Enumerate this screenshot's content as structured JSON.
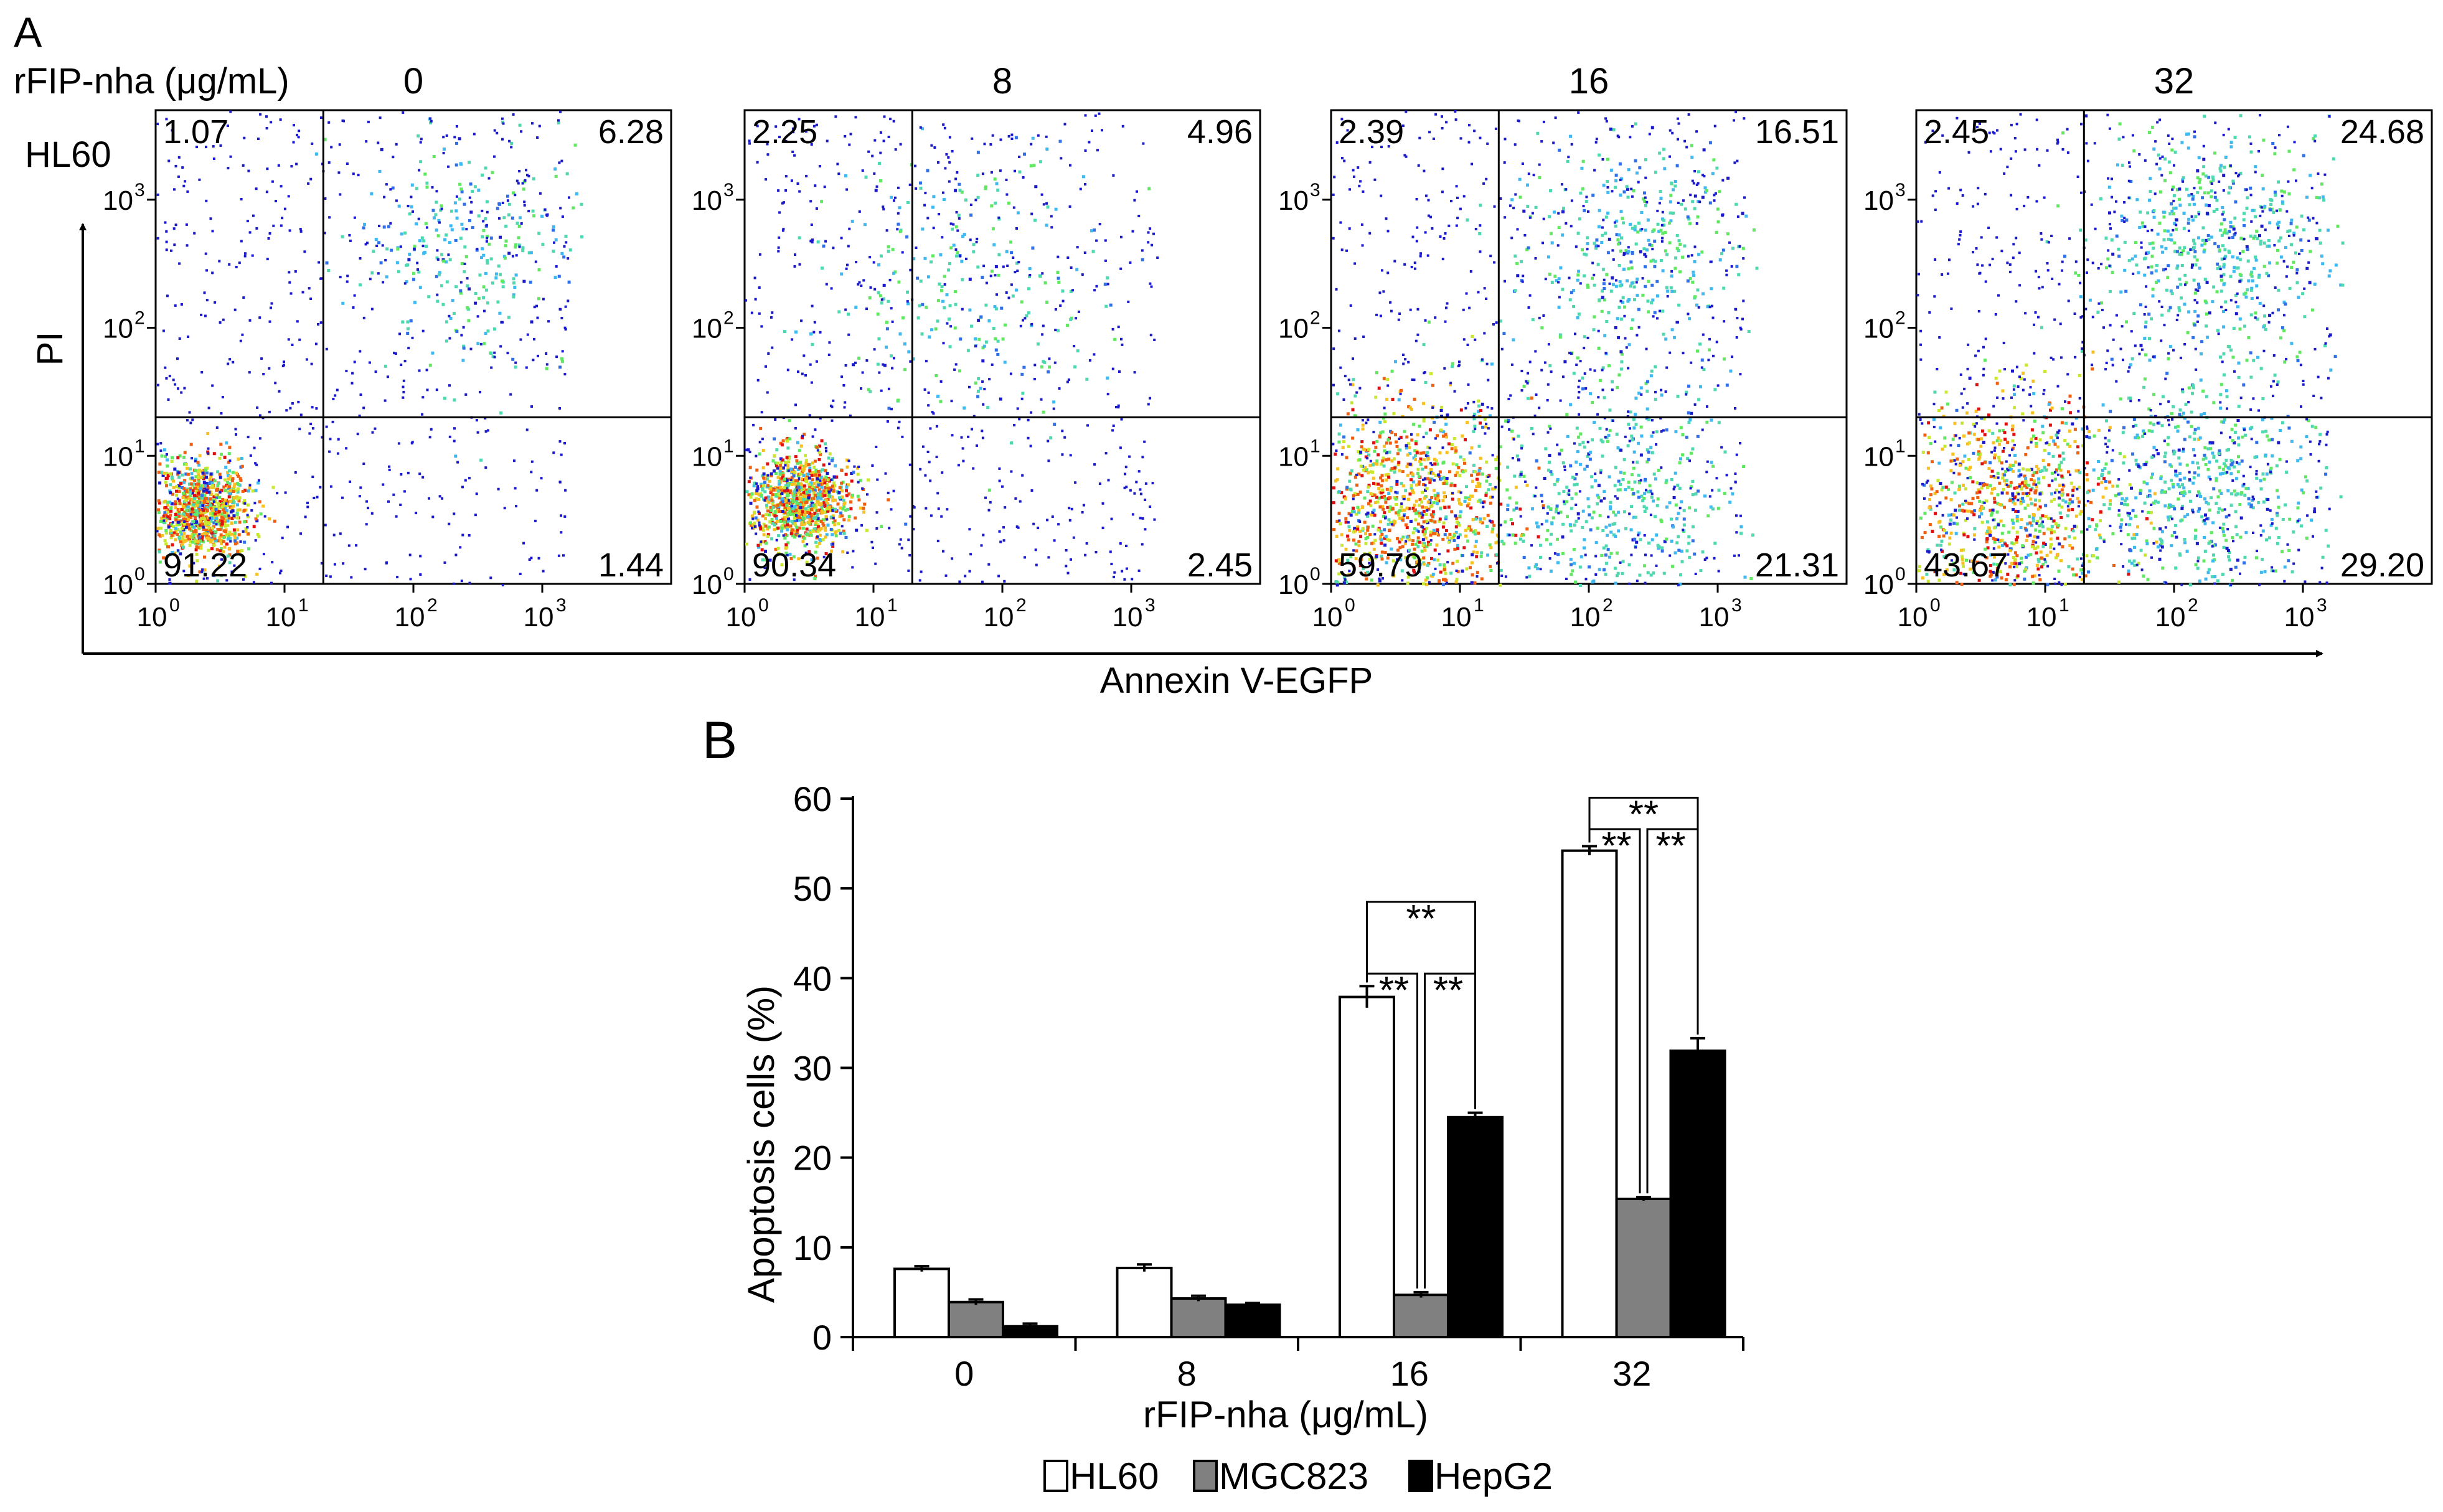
{
  "chart_data": [
    {
      "type": "scatter",
      "panel_label": "A",
      "subtype": "flow-cytometry density dot plots",
      "title": "rFIP-nha (μg/mL)",
      "row_label": "HL60",
      "xlabel": "Annexin V-EGFP",
      "ylabel": "PI",
      "axis_scale": "log",
      "xlim": [
        1,
        10000
      ],
      "ylim": [
        1,
        5000
      ],
      "tick_labels": [
        "10",
        "10",
        "10",
        "10"
      ],
      "tick_exponents": [
        "0",
        "1",
        "2",
        "3"
      ],
      "gate": {
        "x": 20,
        "y": 20
      },
      "panels": [
        {
          "dose": "0",
          "UL": "1.07",
          "UR": "6.28",
          "LL": "91.22",
          "LR": "1.44",
          "clusters": [
            {
              "x": 2.2,
              "y": 3.8,
              "w": 0.12,
              "n": 950
            },
            {
              "x": 300,
              "y": 400,
              "w": 0.3,
              "n": 300
            }
          ]
        },
        {
          "dose": "8",
          "UL": "2.25",
          "UR": "4.96",
          "LL": "90.34",
          "LR": "2.45",
          "clusters": [
            {
              "x": 2.6,
              "y": 4.5,
              "w": 0.12,
              "n": 950
            },
            {
              "x": 60,
              "y": 220,
              "w": 0.34,
              "n": 260
            }
          ]
        },
        {
          "dose": "16",
          "UL": "2.39",
          "UR": "16.51",
          "LL": "59.79",
          "LR": "21.31",
          "clusters": [
            {
              "x": 4,
              "y": 4.2,
              "w": 0.25,
              "n": 1000
            },
            {
              "x": 150,
              "y": 5,
              "w": 0.28,
              "n": 450
            },
            {
              "x": 200,
              "y": 400,
              "w": 0.3,
              "n": 380
            }
          ]
        },
        {
          "dose": "32",
          "UL": "2.45",
          "UR": "24.68",
          "LL": "43.67",
          "LR": "29.20",
          "clusters": [
            {
              "x": 5,
              "y": 4,
              "w": 0.28,
              "n": 850
            },
            {
              "x": 150,
              "y": 5,
              "w": 0.28,
              "n": 550
            },
            {
              "x": 200,
              "y": 450,
              "w": 0.3,
              "n": 550
            }
          ]
        }
      ]
    },
    {
      "type": "bar",
      "panel_label": "B",
      "xlabel": "rFIP-nha (μg/mL)",
      "ylabel": "Apoptosis cells (%)",
      "ylim": [
        0,
        60
      ],
      "yticks": [
        0,
        10,
        20,
        30,
        40,
        50,
        60
      ],
      "categories": [
        "0",
        "8",
        "16",
        "32"
      ],
      "series": [
        {
          "name": "HL60",
          "color": "#ffffff",
          "values": [
            7.6,
            7.7,
            37.9,
            54.2
          ],
          "errors": [
            0.3,
            0.4,
            1.2,
            0.5
          ]
        },
        {
          "name": "MGC823",
          "color": "#808080",
          "values": [
            3.9,
            4.3,
            4.7,
            15.4
          ],
          "errors": [
            0.3,
            0.3,
            0.3,
            0.2
          ]
        },
        {
          "name": "HepG2",
          "color": "#000000",
          "values": [
            1.2,
            3.6,
            24.5,
            31.9
          ],
          "errors": [
            0.3,
            0.2,
            0.5,
            1.4
          ]
        }
      ],
      "significance": [
        {
          "category": "16",
          "marks": [
            {
              "from": 0,
              "to": 1,
              "label": "**",
              "level": 40.5
            },
            {
              "from": 1,
              "to": 2,
              "label": "**",
              "level": 40.5
            },
            {
              "from": 0,
              "to": 2,
              "label": "**",
              "level": 48.5
            }
          ]
        },
        {
          "category": "32",
          "marks": [
            {
              "from": 0,
              "to": 1,
              "label": "**",
              "level": 56.6
            },
            {
              "from": 1,
              "to": 2,
              "label": "**",
              "level": 56.6
            },
            {
              "from": 0,
              "to": 2,
              "label": "**",
              "level": 60.1
            }
          ]
        }
      ]
    }
  ]
}
